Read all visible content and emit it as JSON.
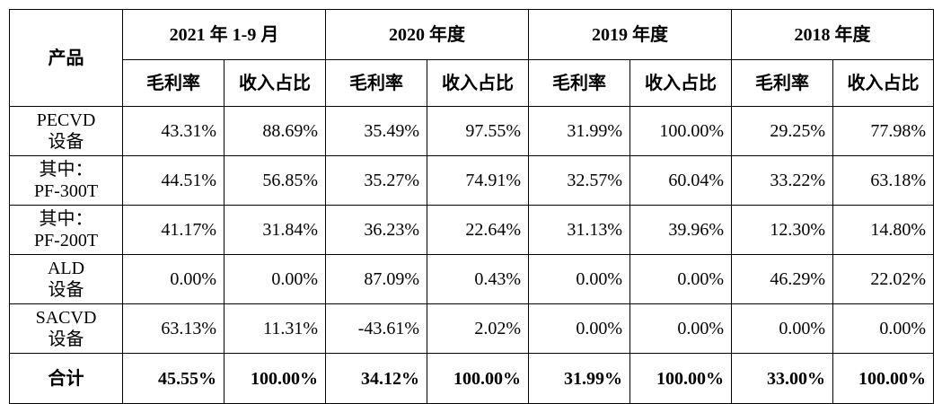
{
  "table": {
    "product_header": "产品",
    "periods": [
      "2021 年 1-9 月",
      "2020 年度",
      "2019 年度",
      "2018 年度"
    ],
    "sub_headers": [
      "毛利率",
      "收入占比"
    ],
    "rows": [
      {
        "product_line1": "PECVD",
        "product_line2": "设备",
        "values": [
          "43.31%",
          "88.69%",
          "35.49%",
          "97.55%",
          "31.99%",
          "100.00%",
          "29.25%",
          "77.98%"
        ]
      },
      {
        "product_line1": "其中：",
        "product_line2": "PF-300T",
        "values": [
          "44.51%",
          "56.85%",
          "35.27%",
          "74.91%",
          "32.57%",
          "60.04%",
          "33.22%",
          "63.18%"
        ]
      },
      {
        "product_line1": "其中：",
        "product_line2": "PF-200T",
        "values": [
          "41.17%",
          "31.84%",
          "36.23%",
          "22.64%",
          "31.13%",
          "39.96%",
          "12.30%",
          "14.80%"
        ]
      },
      {
        "product_line1": "ALD",
        "product_line2": "设备",
        "values": [
          "0.00%",
          "0.00%",
          "87.09%",
          "0.43%",
          "0.00%",
          "0.00%",
          "46.29%",
          "22.02%"
        ]
      },
      {
        "product_line1": "SACVD",
        "product_line2": "设备",
        "values": [
          "63.13%",
          "11.31%",
          "-43.61%",
          "2.02%",
          "0.00%",
          "0.00%",
          "0.00%",
          "0.00%"
        ]
      }
    ],
    "total": {
      "label": "合计",
      "values": [
        "45.55%",
        "100.00%",
        "34.12%",
        "100.00%",
        "31.99%",
        "100.00%",
        "33.00%",
        "100.00%"
      ]
    }
  }
}
